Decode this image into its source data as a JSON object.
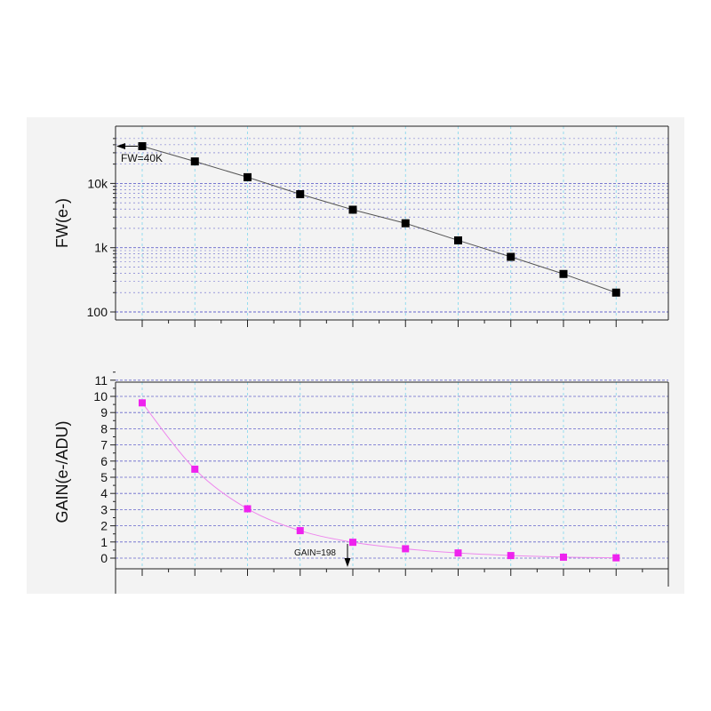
{
  "chart_data": [
    {
      "type": "line",
      "ylabel": "FW(e-)",
      "yscale": "log",
      "ylim": [
        80,
        50000
      ],
      "xlim": [
        -0.5,
        10
      ],
      "x": [
        0,
        1,
        2,
        3,
        4,
        5,
        6,
        7,
        8,
        9
      ],
      "series": [
        {
          "values": [
            38000,
            22000,
            12500,
            6800,
            3900,
            2400,
            1300,
            720,
            390,
            200
          ]
        }
      ],
      "y_tick_labels": [
        {
          "value": 100,
          "label": "100"
        },
        {
          "value": 1000,
          "label": "1k"
        },
        {
          "value": 10000,
          "label": "10k"
        }
      ],
      "annotations": [
        {
          "text": "FW=40K",
          "x": 0,
          "y": 38000
        }
      ],
      "grid": true,
      "colors": {
        "series": "#000000",
        "line": "#555555",
        "hgrid": "#6666cc",
        "vgrid": "#7fd8ee"
      }
    },
    {
      "type": "line",
      "ylabel": "GAIN(e-/ADU)",
      "ylim": [
        -0.5,
        11
      ],
      "xlim": [
        -0.5,
        10
      ],
      "x": [
        0,
        1,
        2,
        3,
        4,
        5,
        6,
        7,
        8,
        9
      ],
      "series": [
        {
          "values": [
            9.6,
            5.5,
            3.05,
            1.7,
            0.98,
            0.58,
            0.32,
            0.16,
            0.06,
            0.02
          ]
        }
      ],
      "y_tick_labels": [
        "0",
        "1",
        "2",
        "3",
        "4",
        "5",
        "6",
        "7",
        "8",
        "9",
        "10",
        "11"
      ],
      "annotations": [
        {
          "text": "GAIN=198",
          "x": 4,
          "y": 0.98
        }
      ],
      "grid": true,
      "colors": {
        "series": "#ee22ee",
        "line": "#ee88ee",
        "hgrid": "#6666cc",
        "vgrid": "#7fd8ee"
      }
    }
  ]
}
